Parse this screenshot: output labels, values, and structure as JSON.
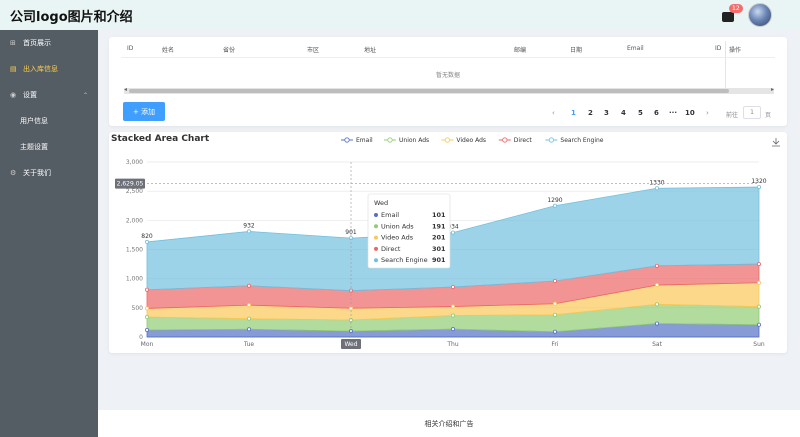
{
  "header": {
    "logo_text": "公司logo图片和介绍",
    "message_count": "12"
  },
  "sidebar": {
    "items": [
      {
        "label": "首页展示",
        "icon": "grid-icon"
      },
      {
        "label": "出入库信息",
        "icon": "document-icon"
      },
      {
        "label": "设置",
        "icon": "location-icon"
      },
      {
        "label": "用户信息"
      },
      {
        "label": "主题设置"
      },
      {
        "label": "关于我们",
        "icon": "gear-icon"
      }
    ]
  },
  "table": {
    "columns": [
      "ID",
      "姓名",
      "省份",
      "市区",
      "地址",
      "邮编",
      "日期",
      "Email",
      "ID",
      "操作"
    ],
    "empty_text": "暂无数据",
    "add_label": "+ 添加",
    "pagination": {
      "pages": [
        "1",
        "2",
        "3",
        "4",
        "5",
        "6"
      ],
      "ellipsis": "···",
      "last": "10",
      "goto_label": "前往",
      "goto_value": "1",
      "page_suffix": "页",
      "current": 1
    }
  },
  "chart_data": {
    "type": "area",
    "title": "Stacked Area Chart",
    "categories": [
      "Mon",
      "Tue",
      "Wed",
      "Thu",
      "Fri",
      "Sat",
      "Sun"
    ],
    "series": [
      {
        "name": "Email",
        "values": [
          120,
          132,
          101,
          134,
          90,
          230,
          210
        ],
        "color": "#5470c6"
      },
      {
        "name": "Union Ads",
        "values": [
          220,
          182,
          191,
          234,
          290,
          330,
          310
        ],
        "color": "#91cc75"
      },
      {
        "name": "Video Ads",
        "values": [
          150,
          232,
          201,
          154,
          190,
          330,
          410
        ],
        "color": "#fac858"
      },
      {
        "name": "Direct",
        "values": [
          320,
          332,
          301,
          334,
          390,
          330,
          320
        ],
        "color": "#ee6666"
      },
      {
        "name": "Search Engine",
        "values": [
          820,
          932,
          901,
          934,
          1290,
          1330,
          1320
        ],
        "color": "#73c0de"
      }
    ],
    "ylim": [
      0,
      3000
    ],
    "yticks": [
      0,
      500,
      1000,
      1500,
      2000,
      2500,
      3000
    ],
    "ytick_labels": [
      "0",
      "500",
      "1,000",
      "1,500",
      "2,000",
      "2,500",
      "3,000"
    ],
    "grid": true,
    "legend_position": "top-center",
    "cursor": {
      "category": "Wed",
      "y_value": 2629.05,
      "y_label": "2,629.05"
    },
    "tooltip": {
      "title": "Wed",
      "rows": [
        {
          "name": "Email",
          "value": "101"
        },
        {
          "name": "Union Ads",
          "value": "191"
        },
        {
          "name": "Video Ads",
          "value": "201"
        },
        {
          "name": "Direct",
          "value": "301"
        },
        {
          "name": "Search Engine",
          "value": "901"
        }
      ]
    }
  },
  "footer": {
    "text": "相关介绍和广告"
  }
}
